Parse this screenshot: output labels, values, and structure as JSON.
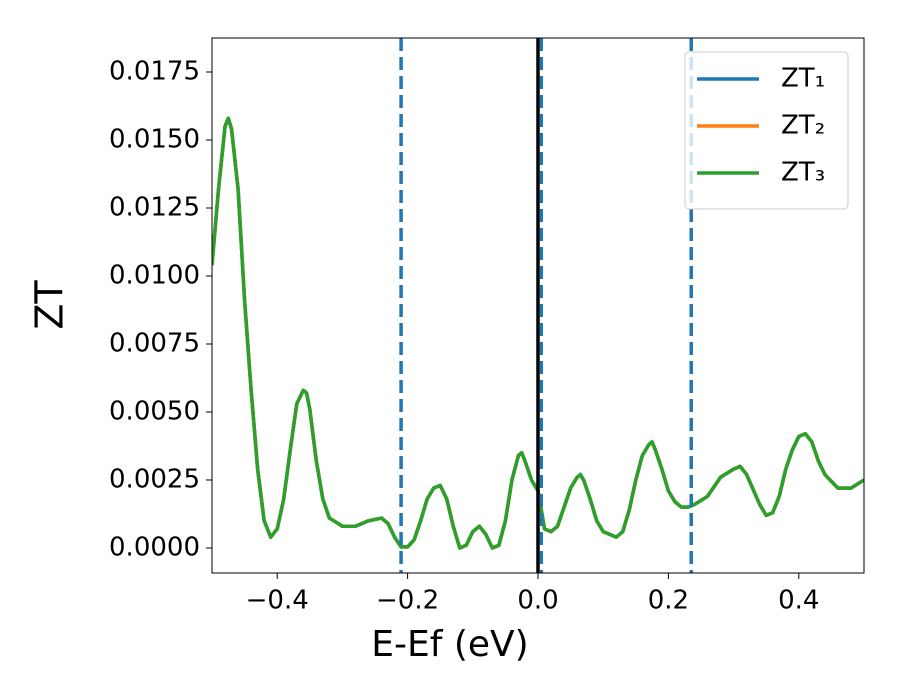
{
  "chart_data": {
    "type": "line",
    "xlabel": "E-Ef (eV)",
    "ylabel": "ZT",
    "x": [
      -0.5,
      -0.49,
      -0.48,
      -0.475,
      -0.47,
      -0.46,
      -0.45,
      -0.44,
      -0.43,
      -0.42,
      -0.41,
      -0.4,
      -0.39,
      -0.38,
      -0.37,
      -0.36,
      -0.355,
      -0.35,
      -0.34,
      -0.33,
      -0.32,
      -0.3,
      -0.28,
      -0.26,
      -0.24,
      -0.23,
      -0.22,
      -0.21,
      -0.2,
      -0.19,
      -0.18,
      -0.17,
      -0.16,
      -0.15,
      -0.14,
      -0.13,
      -0.12,
      -0.11,
      -0.1,
      -0.09,
      -0.08,
      -0.07,
      -0.06,
      -0.05,
      -0.04,
      -0.03,
      -0.025,
      -0.02,
      -0.01,
      0.0,
      0.005,
      0.01,
      0.02,
      0.03,
      0.04,
      0.05,
      0.06,
      0.065,
      0.07,
      0.08,
      0.09,
      0.1,
      0.12,
      0.13,
      0.14,
      0.15,
      0.16,
      0.17,
      0.175,
      0.18,
      0.19,
      0.2,
      0.21,
      0.22,
      0.23,
      0.24,
      0.26,
      0.28,
      0.3,
      0.31,
      0.32,
      0.34,
      0.35,
      0.36,
      0.37,
      0.38,
      0.39,
      0.4,
      0.41,
      0.42,
      0.43,
      0.44,
      0.46,
      0.48,
      0.5
    ],
    "series": [
      {
        "name": "ZT₁",
        "color": "#1f77b4",
        "values": [
          0.0104,
          0.0132,
          0.0155,
          0.0158,
          0.0154,
          0.0132,
          0.0091,
          0.0058,
          0.0029,
          0.001,
          0.0004,
          0.0007,
          0.0018,
          0.0036,
          0.0053,
          0.0058,
          0.0057,
          0.0051,
          0.0032,
          0.0018,
          0.0011,
          0.0008,
          0.0008,
          0.001,
          0.0011,
          0.0009,
          0.0004,
          4e-05,
          4e-05,
          0.0003,
          0.001,
          0.0018,
          0.0022,
          0.0023,
          0.0018,
          0.0008,
          0.0,
          0.0001,
          0.0006,
          0.0008,
          0.0005,
          0.0,
          0.0001,
          0.001,
          0.0025,
          0.0034,
          0.0035,
          0.0032,
          0.0025,
          0.0021,
          0.0014,
          0.0007,
          0.0006,
          0.0008,
          0.0015,
          0.0022,
          0.0026,
          0.0027,
          0.0025,
          0.0018,
          0.001,
          0.0006,
          0.0004,
          0.0006,
          0.0014,
          0.0025,
          0.0034,
          0.0038,
          0.0039,
          0.0036,
          0.0029,
          0.0021,
          0.0017,
          0.0015,
          0.0015,
          0.0016,
          0.0019,
          0.0026,
          0.0029,
          0.003,
          0.0027,
          0.0016,
          0.0012,
          0.0013,
          0.0019,
          0.0029,
          0.0036,
          0.0041,
          0.0042,
          0.0039,
          0.0032,
          0.0027,
          0.0022,
          0.0022,
          0.0025
        ]
      },
      {
        "name": "ZT₂",
        "color": "#ff7f0e",
        "values": [
          0.0104,
          0.0132,
          0.0155,
          0.0158,
          0.0154,
          0.0132,
          0.0091,
          0.0058,
          0.0029,
          0.001,
          0.0004,
          0.0007,
          0.0018,
          0.0036,
          0.0053,
          0.0058,
          0.0057,
          0.0051,
          0.0032,
          0.0018,
          0.0011,
          0.0008,
          0.0008,
          0.001,
          0.0011,
          0.0009,
          0.0004,
          4e-05,
          4e-05,
          0.0003,
          0.001,
          0.0018,
          0.0022,
          0.0023,
          0.0018,
          0.0008,
          0.0,
          0.0001,
          0.0006,
          0.0008,
          0.0005,
          0.0,
          0.0001,
          0.001,
          0.0025,
          0.0034,
          0.0035,
          0.0032,
          0.0025,
          0.0021,
          0.0014,
          0.0007,
          0.0006,
          0.0008,
          0.0015,
          0.0022,
          0.0026,
          0.0027,
          0.0025,
          0.0018,
          0.001,
          0.0006,
          0.0004,
          0.0006,
          0.0014,
          0.0025,
          0.0034,
          0.0038,
          0.0039,
          0.0036,
          0.0029,
          0.0021,
          0.0017,
          0.0015,
          0.0015,
          0.0016,
          0.0019,
          0.0026,
          0.0029,
          0.003,
          0.0027,
          0.0016,
          0.0012,
          0.0013,
          0.0019,
          0.0029,
          0.0036,
          0.0041,
          0.0042,
          0.0039,
          0.0032,
          0.0027,
          0.0022,
          0.0022,
          0.0025
        ]
      },
      {
        "name": "ZT₃",
        "color": "#2ca02c",
        "values": [
          0.0104,
          0.0132,
          0.0155,
          0.0158,
          0.0154,
          0.0132,
          0.0091,
          0.0058,
          0.0029,
          0.001,
          0.0004,
          0.0007,
          0.0018,
          0.0036,
          0.0053,
          0.0058,
          0.0057,
          0.0051,
          0.0032,
          0.0018,
          0.0011,
          0.0008,
          0.0008,
          0.001,
          0.0011,
          0.0009,
          0.0004,
          4e-05,
          4e-05,
          0.0003,
          0.001,
          0.0018,
          0.0022,
          0.0023,
          0.0018,
          0.0008,
          0.0,
          0.0001,
          0.0006,
          0.0008,
          0.0005,
          0.0,
          0.0001,
          0.001,
          0.0025,
          0.0034,
          0.0035,
          0.0032,
          0.0025,
          0.0021,
          0.0014,
          0.0007,
          0.0006,
          0.0008,
          0.0015,
          0.0022,
          0.0026,
          0.0027,
          0.0025,
          0.0018,
          0.001,
          0.0006,
          0.0004,
          0.0006,
          0.0014,
          0.0025,
          0.0034,
          0.0038,
          0.0039,
          0.0036,
          0.0029,
          0.0021,
          0.0017,
          0.0015,
          0.0015,
          0.0016,
          0.0019,
          0.0026,
          0.0029,
          0.003,
          0.0027,
          0.0016,
          0.0012,
          0.0013,
          0.0019,
          0.0029,
          0.0036,
          0.0041,
          0.0042,
          0.0039,
          0.0032,
          0.0027,
          0.0022,
          0.0022,
          0.0025
        ]
      }
    ],
    "vlines": [
      {
        "x": -0.21,
        "color": "#1f77b4",
        "style": "dashed"
      },
      {
        "x": 0.0,
        "color": "#000000",
        "style": "solid"
      },
      {
        "x": 0.005,
        "color": "#1f77b4",
        "style": "dashed"
      },
      {
        "x": 0.235,
        "color": "#1f77b4",
        "style": "dashed"
      }
    ],
    "xlim": [
      -0.5,
      0.5
    ],
    "ylim": [
      -0.00092,
      0.01875
    ],
    "xticks": [
      {
        "value": -0.4,
        "label": "−0.4"
      },
      {
        "value": -0.2,
        "label": "−0.2"
      },
      {
        "value": 0.0,
        "label": "0.0"
      },
      {
        "value": 0.2,
        "label": "0.2"
      },
      {
        "value": 0.4,
        "label": "0.4"
      }
    ],
    "yticks": [
      {
        "value": 0.0,
        "label": "0.0000"
      },
      {
        "value": 0.0025,
        "label": "0.0025"
      },
      {
        "value": 0.005,
        "label": "0.0050"
      },
      {
        "value": 0.0075,
        "label": "0.0075"
      },
      {
        "value": 0.01,
        "label": "0.0100"
      },
      {
        "value": 0.0125,
        "label": "0.0125"
      },
      {
        "value": 0.015,
        "label": "0.0150"
      },
      {
        "value": 0.0175,
        "label": "0.0175"
      }
    ],
    "grid": false,
    "legend": "upper right"
  }
}
